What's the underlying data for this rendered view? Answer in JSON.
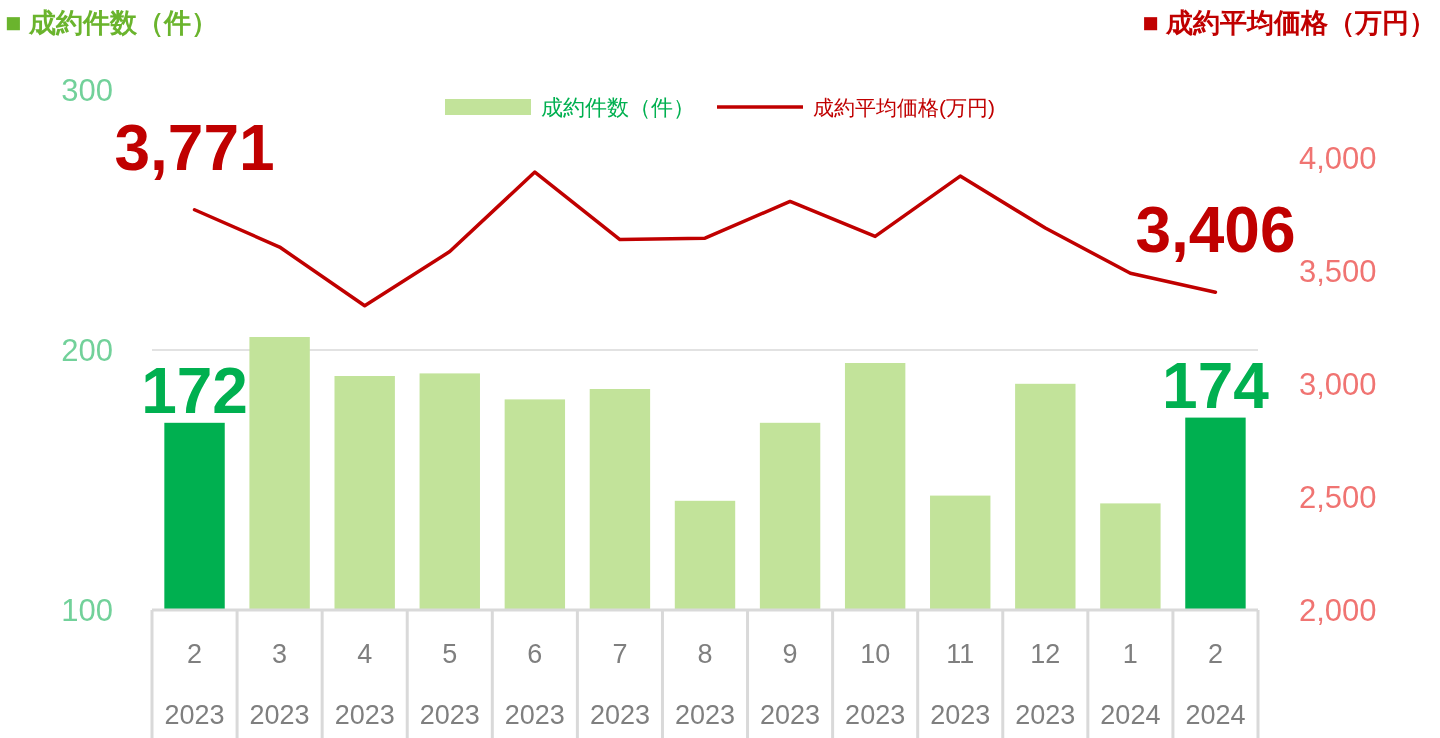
{
  "chart_data": {
    "type": "bar",
    "ylabel": "■ 成約件数（件）",
    "y2label": "■ 成約平均価格（万円）",
    "categories": [
      "2\n2023",
      "3\n2023",
      "4\n2023",
      "5\n2023",
      "6\n2023",
      "7\n2023",
      "8\n2023",
      "9\n2023",
      "10\n2023",
      "11\n2023",
      "12\n2023",
      "1\n2024",
      "2\n2024"
    ],
    "series": [
      {
        "name": "成約件数（件）",
        "color": "#c2e39a",
        "colors": [
          "#00b050",
          "#c2e39a",
          "#c2e39a",
          "#c2e39a",
          "#c2e39a",
          "#c2e39a",
          "#c2e39a",
          "#c2e39a",
          "#c2e39a",
          "#c2e39a",
          "#c2e39a",
          "#c2e39a",
          "#00b050"
        ],
        "values": [
          172,
          205,
          190,
          191,
          181,
          185,
          142,
          172,
          195,
          144,
          187,
          141,
          174
        ],
        "value_labels": [
          "172",
          null,
          null,
          null,
          null,
          null,
          null,
          null,
          null,
          null,
          null,
          null,
          "174"
        ]
      },
      {
        "name": "成約平均価格(万円)",
        "type": "line",
        "axis": "y2",
        "color": "#c00000",
        "values": [
          3771,
          3606,
          3346,
          3586,
          3938,
          3639,
          3645,
          3808,
          3653,
          3920,
          3690,
          3490,
          3406
        ],
        "value_labels": [
          "3,771",
          null,
          null,
          null,
          null,
          null,
          null,
          null,
          null,
          null,
          null,
          null,
          "3,406"
        ]
      }
    ],
    "ylim": [
      100,
      300
    ],
    "yticks": [
      100,
      200,
      300
    ],
    "y2lim": [
      2000,
      4000
    ],
    "y2ticks": [
      {
        "value": 2000,
        "label": "2,000"
      },
      {
        "value": 2500,
        "label": "2,500"
      },
      {
        "value": 3000,
        "label": "3,000"
      },
      {
        "value": 3500,
        "label": "3,500"
      },
      {
        "value": 4000,
        "label": "4,000"
      }
    ],
    "grid": "y",
    "legend": "top"
  }
}
